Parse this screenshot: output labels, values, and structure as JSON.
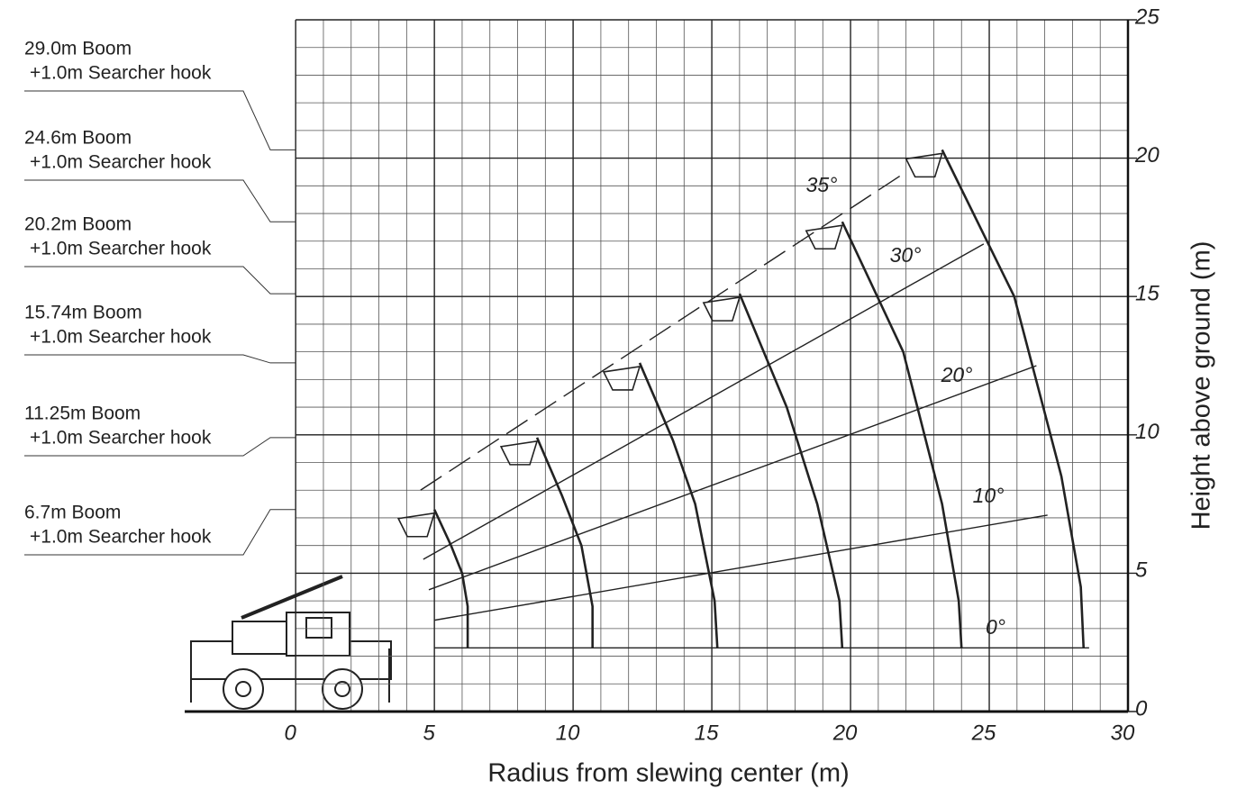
{
  "chart_data": {
    "type": "working-range",
    "xlabel": "Radius from slewing center (m)",
    "ylabel": "Height above ground (m)",
    "xlim": [
      -4,
      30
    ],
    "xticks": [
      0,
      5,
      10,
      15,
      20,
      25,
      30
    ],
    "ylim": [
      0,
      25
    ],
    "yticks": [
      0,
      5,
      10,
      15,
      20,
      25
    ],
    "grid": true,
    "minor_grid": 1,
    "series": [
      {
        "name": "29.0m Boom",
        "attachment": "+1.0m Searcher hook",
        "x": [
          23.3,
          25.9,
          27.6,
          28.3,
          28.4
        ],
        "y": [
          20.3,
          15.0,
          8.5,
          4.5,
          2.3
        ]
      },
      {
        "name": "24.6m Boom",
        "attachment": "+1.0m Searcher hook",
        "x": [
          19.7,
          21.9,
          23.3,
          23.9,
          24.0
        ],
        "y": [
          17.7,
          13.0,
          7.5,
          4.0,
          2.3
        ]
      },
      {
        "name": "20.2m Boom",
        "attachment": "+1.0m Searcher hook",
        "x": [
          16.0,
          17.7,
          18.8,
          19.6,
          19.7
        ],
        "y": [
          15.1,
          11.0,
          7.5,
          4.0,
          2.3
        ]
      },
      {
        "name": "15.74m Boom",
        "attachment": "+1.0m Searcher hook",
        "x": [
          12.4,
          13.6,
          14.4,
          15.1,
          15.2
        ],
        "y": [
          12.6,
          9.8,
          7.5,
          4.0,
          2.3
        ]
      },
      {
        "name": "11.25m Boom",
        "attachment": "+1.0m Searcher hook",
        "x": [
          8.7,
          9.6,
          10.3,
          10.7,
          10.7
        ],
        "y": [
          9.9,
          7.8,
          6.0,
          3.8,
          2.3
        ]
      },
      {
        "name": "6.7m Boom",
        "attachment": "+1.0m Searcher hook",
        "x": [
          5.0,
          5.6,
          6.0,
          6.2,
          6.2
        ],
        "y": [
          7.3,
          6.0,
          5.0,
          3.8,
          2.3
        ]
      }
    ],
    "angles": [
      {
        "name": "35°",
        "x": [
          4.5,
          22.0
        ],
        "y": [
          8.0,
          19.5
        ]
      },
      {
        "name": "30°",
        "x": [
          4.6,
          24.8
        ],
        "y": [
          5.5,
          16.9
        ]
      },
      {
        "name": "20°",
        "x": [
          4.8,
          26.7
        ],
        "y": [
          4.4,
          12.5
        ]
      },
      {
        "name": "10°",
        "x": [
          5.0,
          27.1
        ],
        "y": [
          3.3,
          7.1
        ]
      },
      {
        "name": "0°",
        "x": [
          5.0,
          28.6
        ],
        "y": [
          2.3,
          2.3
        ]
      }
    ]
  }
}
